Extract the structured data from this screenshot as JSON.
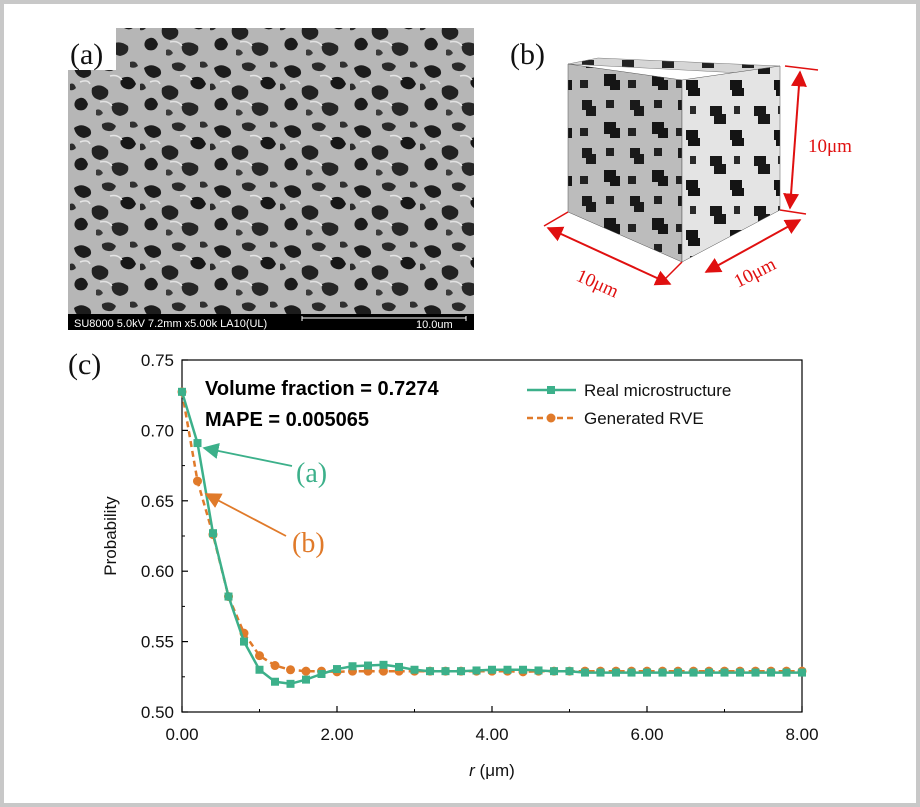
{
  "panels": {
    "a": {
      "label": "(a)",
      "scalebar_info": "SU8000 5.0kV 7.2mm x5.00k LA10(UL)",
      "scalebar_size": "10.0um"
    },
    "b": {
      "label": "(b)",
      "dim_height": "10μm",
      "dim_depth": "10μm",
      "dim_width": "10μm"
    },
    "c": {
      "label": "(c)"
    }
  },
  "colors": {
    "real": "#3cb08a",
    "generated": "#e07a2a",
    "dimension": "#e01010",
    "frame": "#c8c8c8"
  },
  "chart_data": {
    "type": "line",
    "xlabel_italic": "r",
    "xlabel_unit": " (μm)",
    "ylabel": "Probability",
    "xlim": [
      0,
      8
    ],
    "ylim": [
      0.5,
      0.75
    ],
    "x_ticks": [
      "0.00",
      "2.00",
      "4.00",
      "6.00",
      "8.00"
    ],
    "y_ticks": [
      "0.50",
      "0.55",
      "0.60",
      "0.65",
      "0.70",
      "0.75"
    ],
    "annotation_volume": "Volume fraction = 0.7274",
    "annotation_mape": "MAPE = 0.005065",
    "legend_position": "top-right",
    "callouts": [
      {
        "text": "(a)",
        "series": "Real microstructure"
      },
      {
        "text": "(b)",
        "series": "Generated RVE"
      }
    ],
    "series": [
      {
        "name": "Real microstructure",
        "style": "solid",
        "marker": "square",
        "x": [
          0,
          0.2,
          0.4,
          0.6,
          0.8,
          1.0,
          1.2,
          1.4,
          1.6,
          1.8,
          2.0,
          2.2,
          2.4,
          2.6,
          2.8,
          3.0,
          3.2,
          3.4,
          3.6,
          3.8,
          4.0,
          4.2,
          4.4,
          4.6,
          4.8,
          5.0,
          5.2,
          5.4,
          5.6,
          5.8,
          6.0,
          6.2,
          6.4,
          6.6,
          6.8,
          7.0,
          7.2,
          7.4,
          7.6,
          7.8,
          8.0
        ],
        "y": [
          0.7274,
          0.691,
          0.627,
          0.582,
          0.55,
          0.53,
          0.5215,
          0.52,
          0.523,
          0.527,
          0.5305,
          0.5325,
          0.533,
          0.5335,
          0.532,
          0.53,
          0.529,
          0.529,
          0.529,
          0.5295,
          0.53,
          0.53,
          0.53,
          0.5295,
          0.529,
          0.529,
          0.528,
          0.528,
          0.528,
          0.528,
          0.528,
          0.528,
          0.528,
          0.528,
          0.528,
          0.528,
          0.528,
          0.528,
          0.528,
          0.528,
          0.528
        ]
      },
      {
        "name": "Generated RVE",
        "style": "dashed",
        "marker": "circle",
        "x": [
          0,
          0.2,
          0.4,
          0.6,
          0.8,
          1.0,
          1.2,
          1.4,
          1.6,
          1.8,
          2.0,
          2.2,
          2.4,
          2.6,
          2.8,
          3.0,
          3.2,
          3.4,
          3.6,
          3.8,
          4.0,
          4.2,
          4.4,
          4.6,
          4.8,
          5.0,
          5.2,
          5.4,
          5.6,
          5.8,
          6.0,
          6.2,
          6.4,
          6.6,
          6.8,
          7.0,
          7.2,
          7.4,
          7.6,
          7.8,
          8.0
        ],
        "y": [
          0.7274,
          0.664,
          0.626,
          0.582,
          0.556,
          0.54,
          0.533,
          0.53,
          0.529,
          0.529,
          0.5285,
          0.529,
          0.529,
          0.529,
          0.529,
          0.529,
          0.529,
          0.529,
          0.529,
          0.529,
          0.529,
          0.529,
          0.5285,
          0.529,
          0.529,
          0.529,
          0.529,
          0.529,
          0.529,
          0.529,
          0.529,
          0.529,
          0.529,
          0.529,
          0.529,
          0.529,
          0.529,
          0.529,
          0.529,
          0.529,
          0.529
        ]
      }
    ]
  }
}
